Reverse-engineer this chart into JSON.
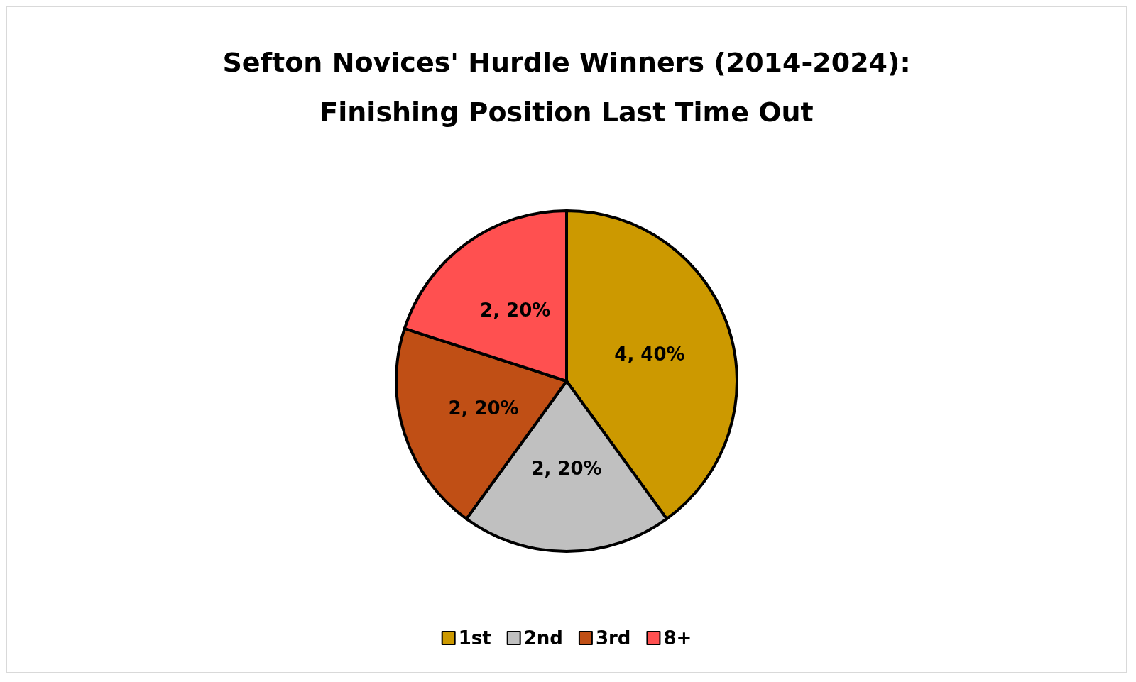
{
  "chart_data": {
    "type": "pie",
    "title": "Sefton Novices' Hurdle Winners (2014-2024):\nFinishing Position Last Time Out",
    "categories": [
      "1st",
      "2nd",
      "3rd",
      "8+"
    ],
    "values": [
      4,
      2,
      2,
      2
    ],
    "colors": [
      "#cc9900",
      "#c0c0c0",
      "#c04f15",
      "#ff5050"
    ],
    "value_labels": [
      "4, 40%",
      "2, 20%",
      "2, 20%",
      "2, 20%"
    ],
    "legend": "bottom"
  }
}
